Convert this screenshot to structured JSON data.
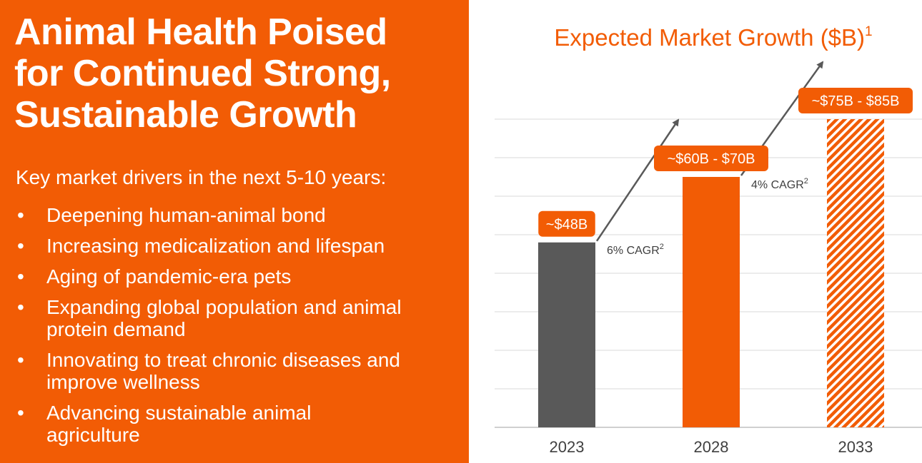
{
  "slide": {
    "title_lines": [
      "Animal Health Poised",
      "for Continued Strong,",
      "Sustainable Growth"
    ],
    "drivers_heading": "Key market drivers in the next 5-10 years:",
    "drivers": [
      {
        "lines": [
          "Deepening human-animal bond"
        ]
      },
      {
        "lines": [
          "Increasing medicalization and lifespan"
        ]
      },
      {
        "lines": [
          "Aging of pandemic-era pets"
        ]
      },
      {
        "lines": [
          "Expanding global population and animal",
          "protein demand"
        ]
      },
      {
        "lines": [
          "Innovating to treat chronic diseases and",
          "improve wellness"
        ]
      },
      {
        "lines": [
          "Advancing sustainable animal",
          "agriculture"
        ]
      }
    ]
  },
  "colors": {
    "accent": "#f25c05",
    "bar_2023": "#595959",
    "gridline": "#e6e6e6",
    "axis": "#d0d0d0",
    "text": "#404040"
  },
  "chart_data": {
    "type": "bar",
    "title": "Expected Market Growth ($B)",
    "title_footnote": "1",
    "categories": [
      "2023",
      "2028",
      "2033"
    ],
    "values": [
      48,
      65,
      80
    ],
    "value_labels": [
      "~$48B",
      "~$60B - $70B",
      "~$75B - $85B"
    ],
    "bar_styles": [
      "solid-gray",
      "solid-orange",
      "hatched-orange"
    ],
    "ylim": [
      0,
      80
    ],
    "grid": true,
    "gridline_values": [
      10,
      20,
      30,
      40,
      50,
      60,
      70,
      80
    ],
    "annotations": [
      {
        "text": "6% CAGR",
        "sup": "2",
        "from": "2023",
        "to": "2028"
      },
      {
        "text": "4% CAGR",
        "sup": "2",
        "from": "2028",
        "to": "2033"
      }
    ]
  }
}
